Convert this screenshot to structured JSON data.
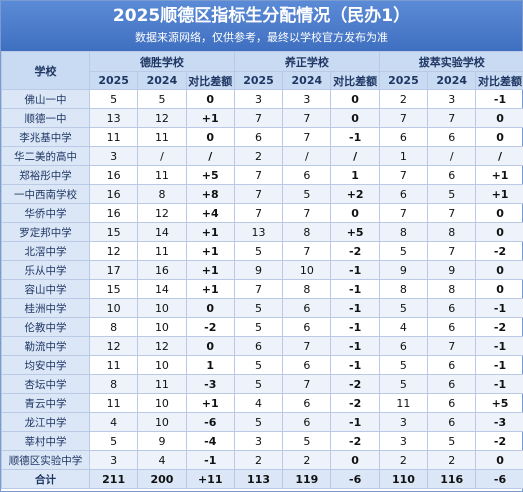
{
  "header": {
    "title": "2025顺德区指标生分配情况（民办1）",
    "subtitle": "数据来源网络，仅供参考，最终以学校官方发布为准"
  },
  "table": {
    "school_header": "学校",
    "groups": [
      "德胜学校",
      "养正学校",
      "拔萃实验学校"
    ],
    "subheaders": [
      "2025",
      "2024",
      "对比差额",
      "2025",
      "2024",
      "对比差额",
      "2025",
      "2024",
      "对比差额"
    ],
    "rows": [
      [
        "佛山一中",
        "5",
        "5",
        "0",
        "3",
        "3",
        "0",
        "2",
        "3",
        "-1"
      ],
      [
        "顺德一中",
        "13",
        "12",
        "+1",
        "7",
        "7",
        "0",
        "7",
        "7",
        "0"
      ],
      [
        "李兆基中学",
        "11",
        "11",
        "0",
        "6",
        "7",
        "-1",
        "6",
        "6",
        "0"
      ],
      [
        "华二美的高中",
        "3",
        "/",
        "/",
        "2",
        "/",
        "/",
        "1",
        "/",
        "/"
      ],
      [
        "郑裕彤中学",
        "16",
        "11",
        "+5",
        "7",
        "6",
        "1",
        "7",
        "6",
        "+1"
      ],
      [
        "一中西南学校",
        "16",
        "8",
        "+8",
        "7",
        "5",
        "+2",
        "6",
        "5",
        "+1"
      ],
      [
        "华侨中学",
        "16",
        "12",
        "+4",
        "7",
        "7",
        "0",
        "7",
        "7",
        "0"
      ],
      [
        "罗定邦中学",
        "15",
        "14",
        "+1",
        "13",
        "8",
        "+5",
        "8",
        "8",
        "0"
      ],
      [
        "北滘中学",
        "12",
        "11",
        "+1",
        "5",
        "7",
        "-2",
        "5",
        "7",
        "-2"
      ],
      [
        "乐从中学",
        "17",
        "16",
        "+1",
        "9",
        "10",
        "-1",
        "9",
        "9",
        "0"
      ],
      [
        "容山中学",
        "15",
        "14",
        "+1",
        "7",
        "8",
        "-1",
        "8",
        "8",
        "0"
      ],
      [
        "桂洲中学",
        "10",
        "10",
        "0",
        "5",
        "6",
        "-1",
        "5",
        "6",
        "-1"
      ],
      [
        "伦教中学",
        "8",
        "10",
        "-2",
        "5",
        "6",
        "-1",
        "4",
        "6",
        "-2"
      ],
      [
        "勒流中学",
        "12",
        "12",
        "0",
        "6",
        "7",
        "-1",
        "6",
        "7",
        "-1"
      ],
      [
        "均安中学",
        "11",
        "10",
        "1",
        "5",
        "6",
        "-1",
        "5",
        "6",
        "-1"
      ],
      [
        "杏坛中学",
        "8",
        "11",
        "-3",
        "5",
        "7",
        "-2",
        "5",
        "6",
        "-1"
      ],
      [
        "青云中学",
        "11",
        "10",
        "+1",
        "4",
        "6",
        "-2",
        "11",
        "6",
        "+5"
      ],
      [
        "龙江中学",
        "4",
        "10",
        "-6",
        "5",
        "6",
        "-1",
        "3",
        "6",
        "-3"
      ],
      [
        "莘村中学",
        "5",
        "9",
        "-4",
        "3",
        "5",
        "-2",
        "3",
        "5",
        "-2"
      ],
      [
        "顺德区实验中学",
        "3",
        "4",
        "-1",
        "2",
        "2",
        "0",
        "2",
        "2",
        "0"
      ],
      [
        "合计",
        "211",
        "200",
        "+11",
        "113",
        "119",
        "-6",
        "110",
        "116",
        "-6"
      ]
    ]
  }
}
